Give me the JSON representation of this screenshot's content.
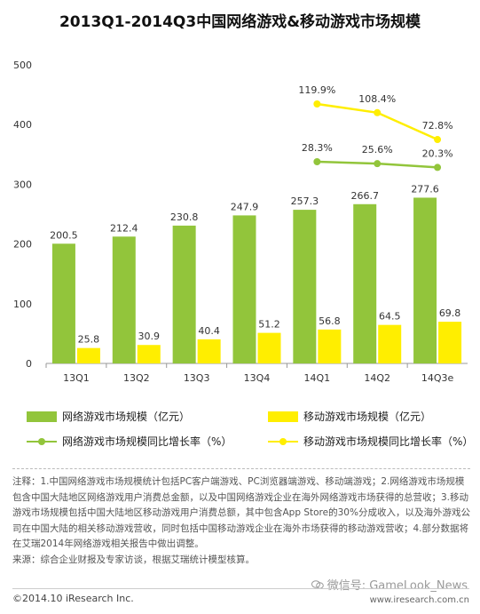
{
  "title": "2013Q1-2014Q3中国网络游戏&移动游戏市场规模",
  "chart_data": {
    "type": "bar",
    "categories": [
      "13Q1",
      "13Q2",
      "13Q3",
      "13Q4",
      "14Q1",
      "14Q2",
      "14Q3e"
    ],
    "ylim": [
      0,
      500
    ],
    "yticks": [
      0,
      100,
      200,
      300,
      400,
      500
    ],
    "grid": false,
    "legend_position": "bottom",
    "series": [
      {
        "name": "网络游戏市场规模（亿元）",
        "kind": "bar",
        "color": "#92c53b",
        "values": [
          200.5,
          212.4,
          230.8,
          247.9,
          257.3,
          266.7,
          277.6
        ]
      },
      {
        "name": "移动游戏市场规模（亿元）",
        "kind": "bar",
        "color": "#ffee00",
        "values": [
          25.8,
          30.9,
          40.4,
          51.2,
          56.8,
          64.5,
          69.8
        ]
      },
      {
        "name": "网络游戏市场规模同比增长率（%）",
        "kind": "line",
        "color": "#92c53b",
        "values": [
          null,
          null,
          null,
          null,
          28.3,
          25.6,
          20.3
        ],
        "labels": [
          null,
          null,
          null,
          null,
          "28.3%",
          "25.6%",
          "20.3%"
        ]
      },
      {
        "name": "移动游戏市场规模同比增长率（%）",
        "kind": "line",
        "color": "#ffee00",
        "values": [
          null,
          null,
          null,
          null,
          119.9,
          108.4,
          72.8
        ],
        "labels": [
          null,
          null,
          null,
          null,
          "119.9%",
          "108.4%",
          "72.8%"
        ]
      }
    ]
  },
  "notes": {
    "text": "注释：1.中国网络游戏市场规模统计包括PC客户端游戏、PC浏览器端游戏、移动端游戏；2.网络游戏市场规模包含中国大陆地区网络游戏用户消费总金额，以及中国网络游戏企业在海外网络游戏市场获得的总营收；3.移动游戏市场规模包括中国大陆地区移动游戏用户消费总额，其中包含App Store的30%分成收入，以及海外游戏公司在中国大陆的相关移动游戏营收，同时包括中国移动游戏企业在海外市场获得的移动游戏营收；4.部分数据将在艾瑞2014年网络游戏相关报告中做出调整。",
    "source": "来源：综合企业财报及专家访谈，根据艾瑞统计模型核算。"
  },
  "footer": {
    "copyright": "©2014.10 iResearch Inc.",
    "website": "www.iresearch.com.cn",
    "watermark": "微信号: GameLook_News"
  }
}
